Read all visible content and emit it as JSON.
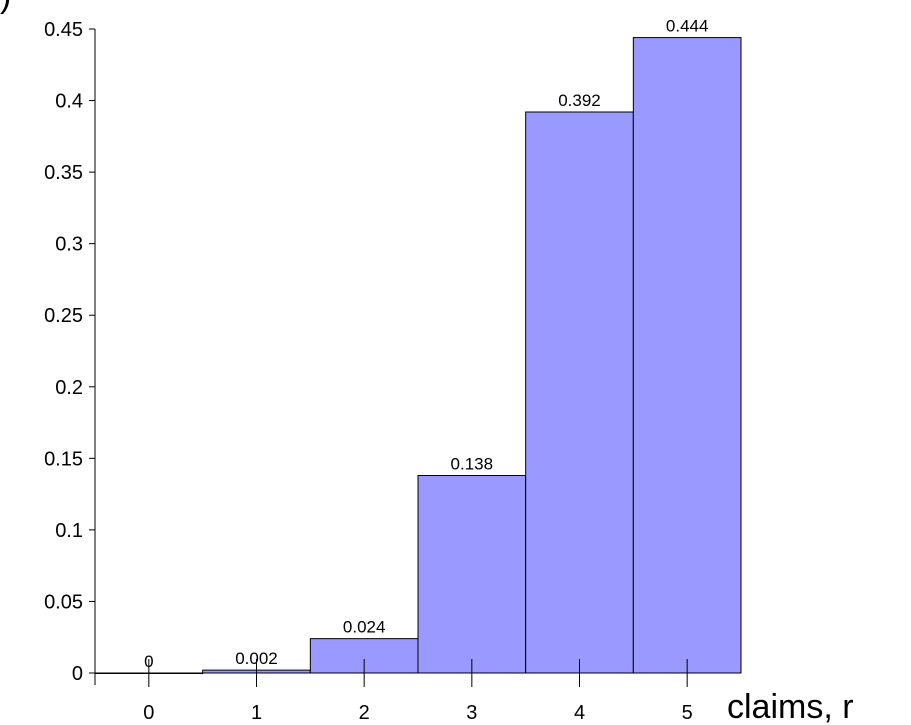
{
  "chart_data": {
    "type": "bar",
    "title": "",
    "ylabel": ")",
    "xlabel": "claims, r",
    "categories": [
      "0",
      "1",
      "2",
      "3",
      "4",
      "5"
    ],
    "values": [
      0,
      0.002,
      0.024,
      0.138,
      0.392,
      0.444
    ],
    "data_labels": [
      "0",
      "0.002",
      "0.024",
      "0.138",
      "0.392",
      "0.444"
    ],
    "yticks": [
      0,
      0.05,
      0.1,
      0.15,
      0.2,
      0.25,
      0.3,
      0.35,
      0.4,
      0.45
    ],
    "ytick_labels": [
      "0",
      "0.05",
      "0.1",
      "0.15",
      "0.2",
      "0.25",
      "0.3",
      "0.35",
      "0.4",
      "0.45"
    ],
    "ylim": [
      0,
      0.45
    ],
    "grid": false,
    "legend": "none",
    "bar_color": "#9999ff",
    "bar_edge_color": "#000000"
  }
}
